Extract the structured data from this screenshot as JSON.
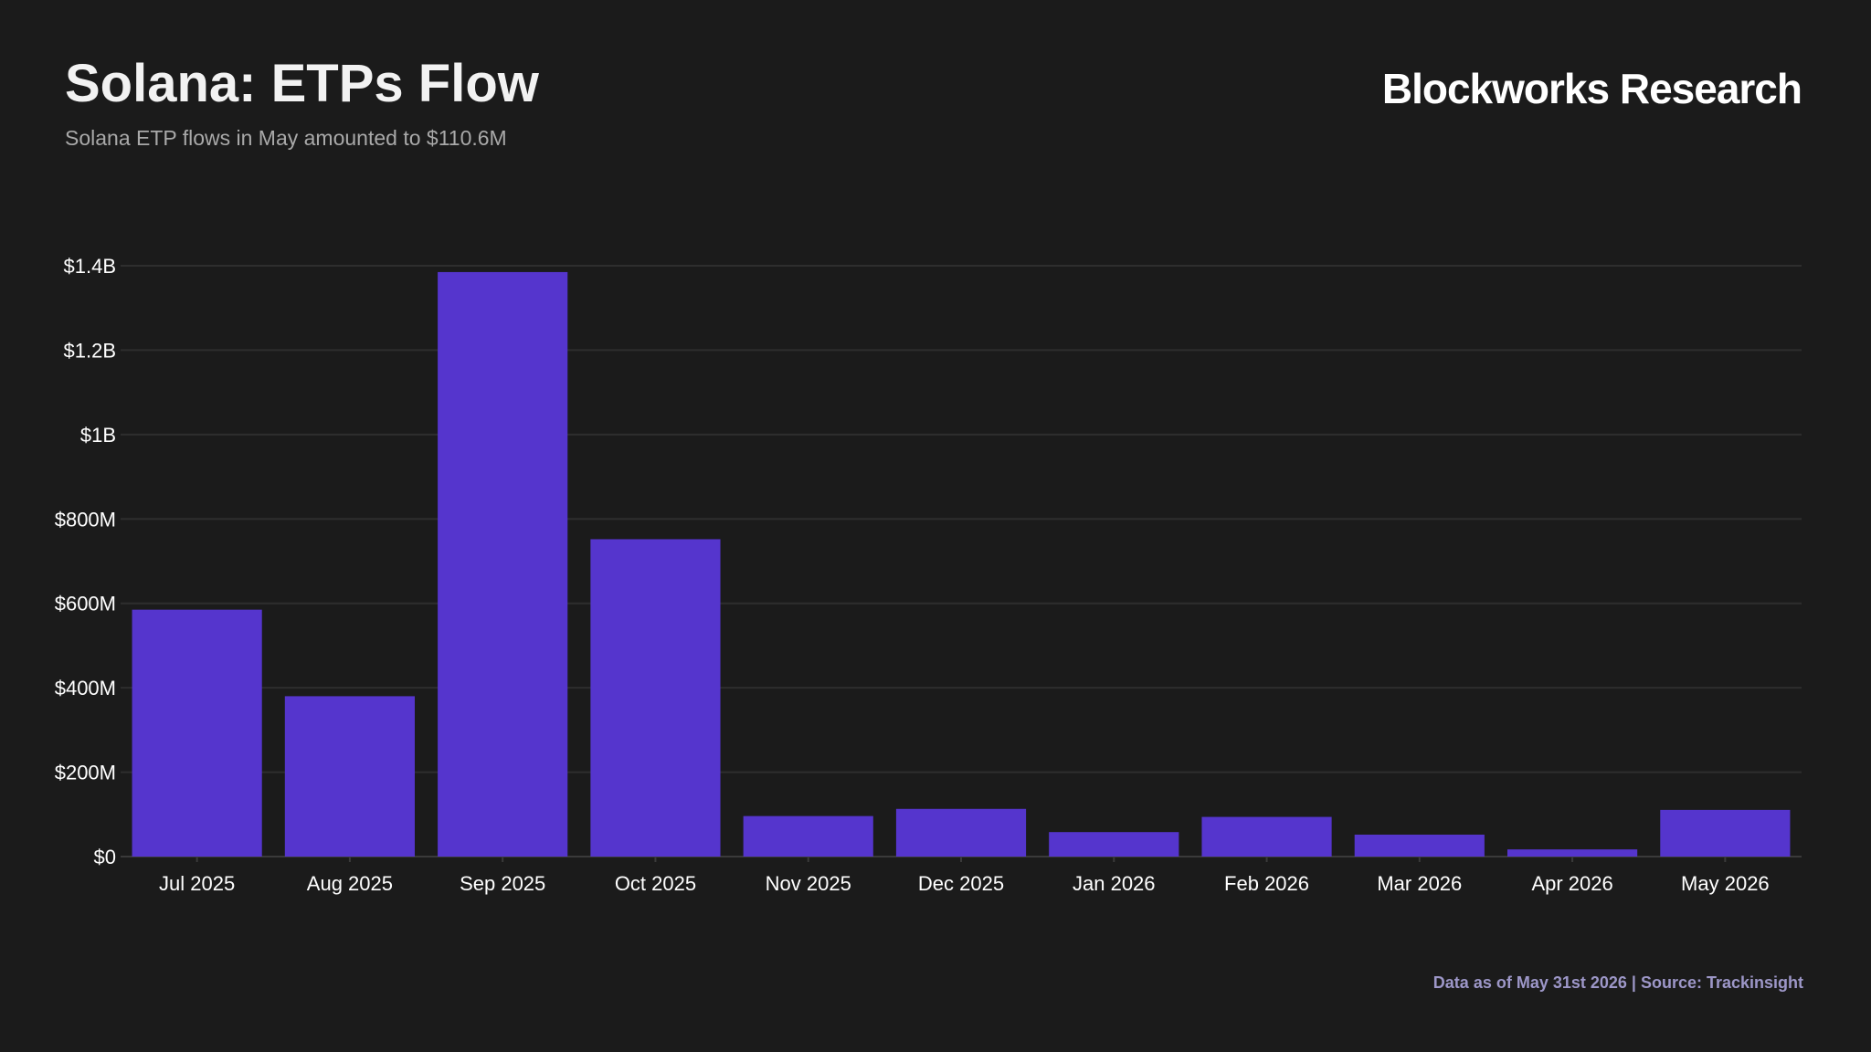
{
  "header": {
    "title": "Solana: ETPs Flow",
    "subtitle": "Solana ETP flows in May amounted to $110.6M",
    "brand": "Blockworks Research"
  },
  "footer": {
    "note": "Data as of May 31st 2026 | Source: Trackinsight"
  },
  "colors": {
    "background": "#1b1b1b",
    "bar": "#5535cd",
    "grid": "#2e2e2e"
  },
  "chart_data": {
    "type": "bar",
    "title": "Solana: ETPs Flow",
    "subtitle": "Solana ETP flows in May amounted to $110.6M",
    "xlabel": "",
    "ylabel": "",
    "categories": [
      "Jul 2025",
      "Aug 2025",
      "Sep 2025",
      "Oct 2025",
      "Nov 2025",
      "Dec 2025",
      "Jan 2026",
      "Feb 2026",
      "Mar 2026",
      "Apr 2026",
      "May 2026"
    ],
    "values": [
      585000000,
      380000000,
      1385000000,
      752000000,
      96000000,
      113000000,
      58000000,
      94000000,
      52000000,
      17000000,
      110600000
    ],
    "ylim": [
      0,
      1400000000
    ],
    "yticks": [
      0,
      200000000,
      400000000,
      600000000,
      800000000,
      1000000000,
      1200000000,
      1400000000
    ],
    "ytick_labels": [
      "$0",
      "$200M",
      "$400M",
      "$600M",
      "$800M",
      "$1B",
      "$1.2B",
      "$1.4B"
    ],
    "grid": true,
    "legend": "none"
  }
}
